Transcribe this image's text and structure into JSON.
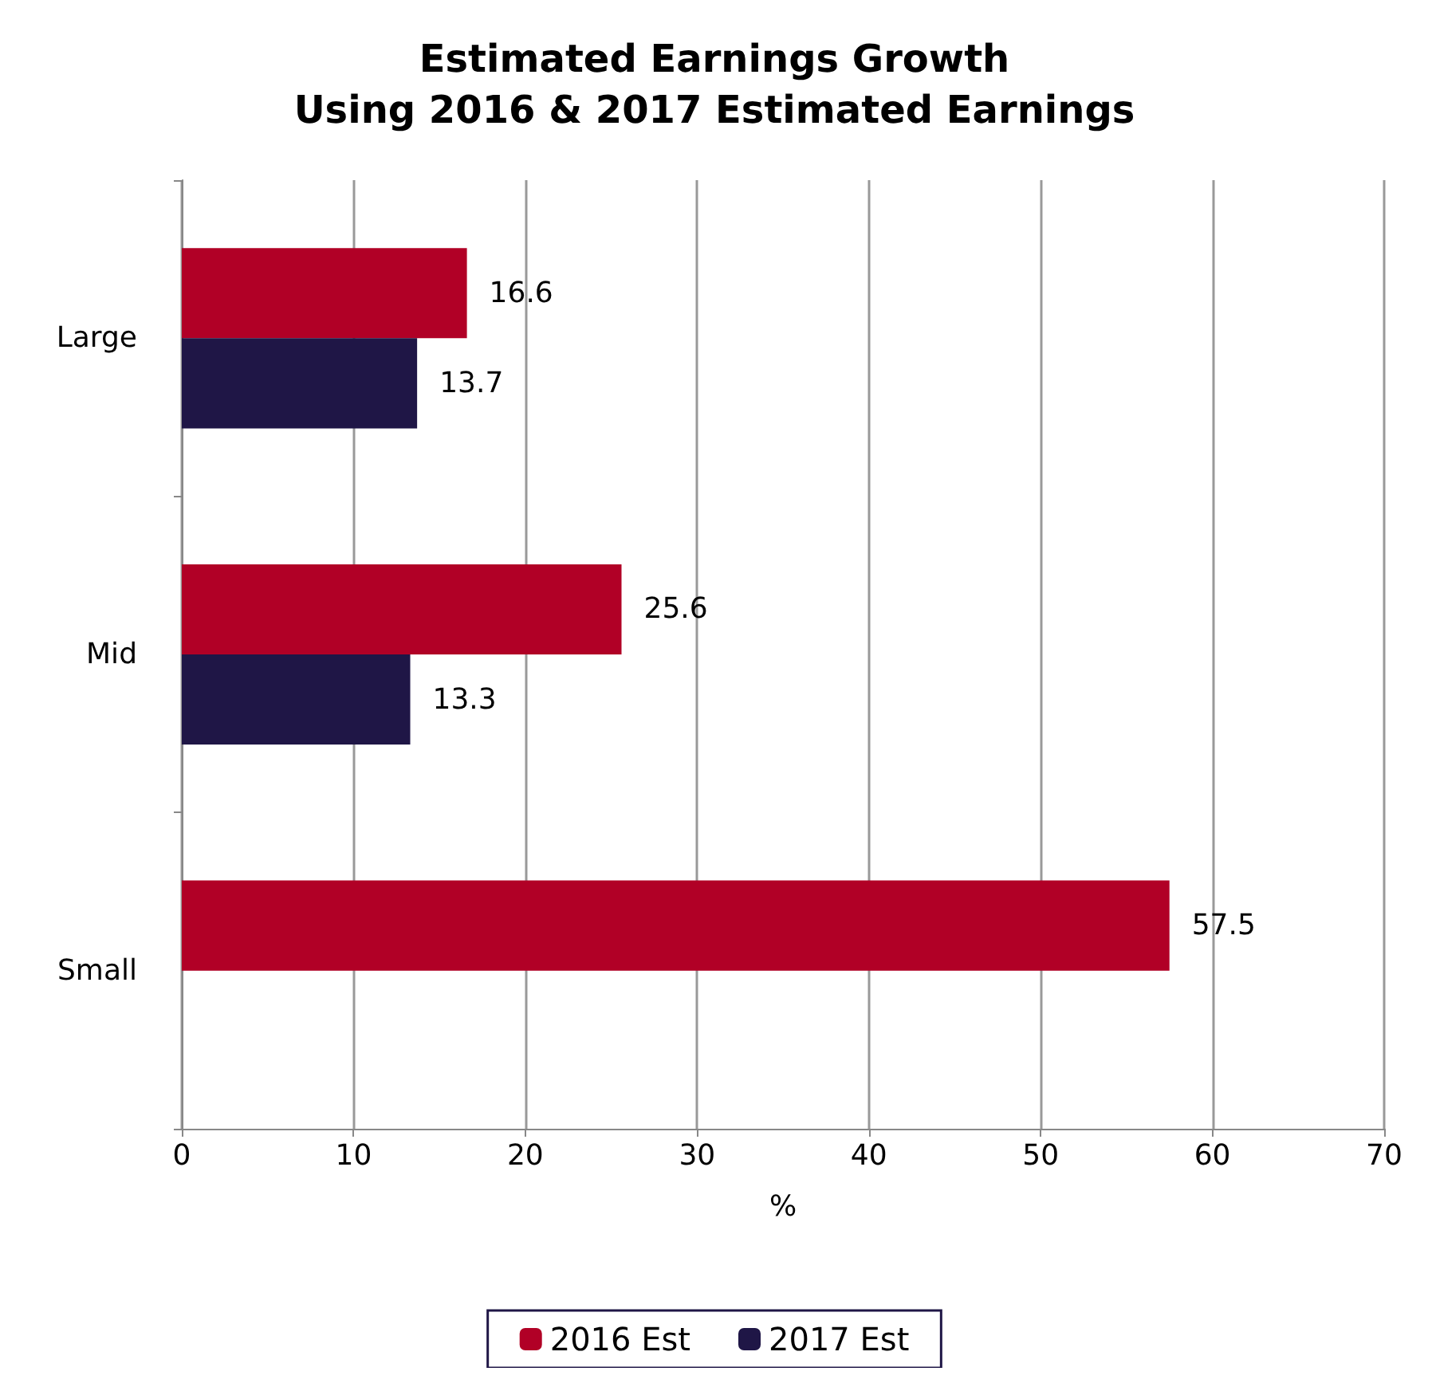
{
  "chart_data": {
    "type": "bar",
    "orientation": "horizontal",
    "title": "Estimated Earnings Growth\nUsing 2016 & 2017 Estimated Earnings",
    "xlabel": "%",
    "categories": [
      "Large",
      "Mid",
      "Small"
    ],
    "series": [
      {
        "name": "2016 Est",
        "color": "#b10026",
        "values": [
          16.6,
          25.6,
          57.5
        ]
      },
      {
        "name": "2017 Est",
        "color": "#1f1646",
        "values": [
          13.7,
          13.3,
          null
        ]
      }
    ],
    "xlim": [
      0,
      70
    ],
    "xticks": [
      0,
      10,
      20,
      30,
      40,
      50,
      60,
      70
    ],
    "grid": "x",
    "legend": "bottom",
    "data_labels": true
  }
}
